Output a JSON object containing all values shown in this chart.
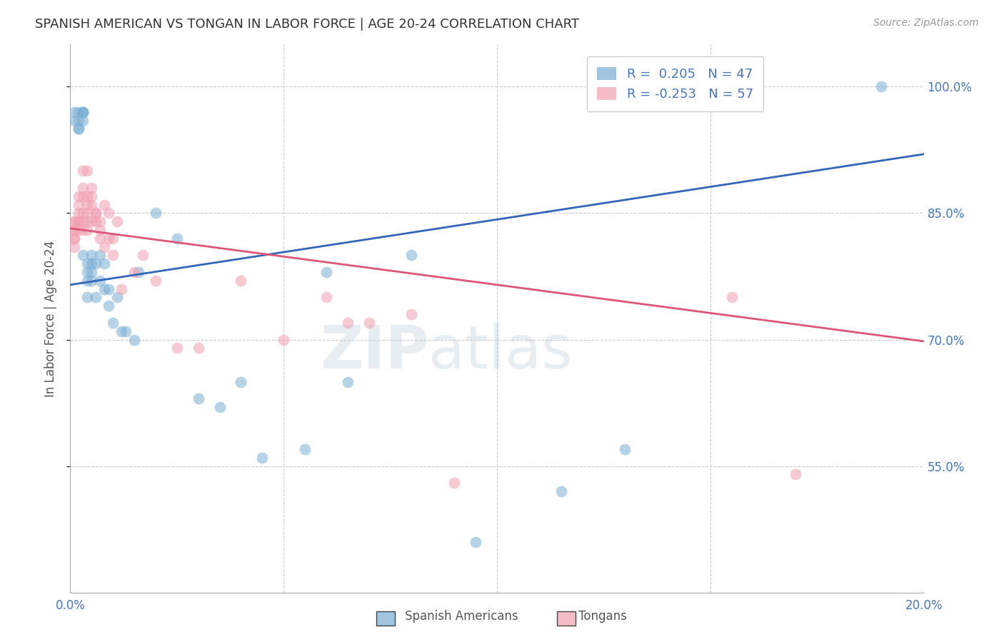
{
  "title": "SPANISH AMERICAN VS TONGAN IN LABOR FORCE | AGE 20-24 CORRELATION CHART",
  "source": "Source: ZipAtlas.com",
  "ylabel": "In Labor Force | Age 20-24",
  "xlim": [
    0.0,
    0.2
  ],
  "ylim": [
    0.4,
    1.05
  ],
  "yticks": [
    0.55,
    0.7,
    0.85,
    1.0
  ],
  "grid_color": "#cccccc",
  "background_color": "#ffffff",
  "blue_color": "#7aadd4",
  "pink_color": "#f0a0b0",
  "blue_line_color": "#3366bb",
  "pink_line_color": "#dd5577",
  "title_color": "#333333",
  "axis_label_color": "#555555",
  "tick_color": "#4477bb",
  "legend_R_blue": "0.205",
  "legend_N_blue": "47",
  "legend_R_pink": "-0.253",
  "legend_N_pink": "57",
  "blue_x": [
    0.001,
    0.001,
    0.002,
    0.002,
    0.002,
    0.002,
    0.003,
    0.003,
    0.003,
    0.003,
    0.003,
    0.004,
    0.004,
    0.004,
    0.004,
    0.005,
    0.005,
    0.005,
    0.005,
    0.006,
    0.006,
    0.007,
    0.007,
    0.008,
    0.008,
    0.009,
    0.009,
    0.01,
    0.011,
    0.012,
    0.013,
    0.015,
    0.016,
    0.02,
    0.025,
    0.03,
    0.035,
    0.04,
    0.055,
    0.065,
    0.08,
    0.095,
    0.115,
    0.13,
    0.19,
    0.06,
    0.045
  ],
  "blue_y": [
    0.97,
    0.96,
    0.96,
    0.95,
    0.95,
    0.97,
    0.97,
    0.97,
    0.96,
    0.97,
    0.8,
    0.78,
    0.77,
    0.79,
    0.75,
    0.8,
    0.79,
    0.78,
    0.77,
    0.79,
    0.75,
    0.8,
    0.77,
    0.79,
    0.76,
    0.76,
    0.74,
    0.72,
    0.75,
    0.71,
    0.71,
    0.7,
    0.78,
    0.85,
    0.82,
    0.63,
    0.62,
    0.65,
    0.57,
    0.65,
    0.8,
    0.46,
    0.52,
    0.57,
    1.0,
    0.78,
    0.56
  ],
  "pink_x": [
    0.001,
    0.001,
    0.001,
    0.001,
    0.001,
    0.001,
    0.001,
    0.002,
    0.002,
    0.002,
    0.002,
    0.002,
    0.002,
    0.003,
    0.003,
    0.003,
    0.003,
    0.003,
    0.003,
    0.004,
    0.004,
    0.004,
    0.004,
    0.004,
    0.004,
    0.005,
    0.005,
    0.005,
    0.005,
    0.006,
    0.006,
    0.006,
    0.007,
    0.007,
    0.007,
    0.008,
    0.008,
    0.009,
    0.009,
    0.01,
    0.01,
    0.011,
    0.012,
    0.015,
    0.017,
    0.02,
    0.025,
    0.03,
    0.04,
    0.05,
    0.06,
    0.065,
    0.07,
    0.08,
    0.09,
    0.155,
    0.17
  ],
  "pink_y": [
    0.84,
    0.83,
    0.83,
    0.82,
    0.82,
    0.81,
    0.84,
    0.87,
    0.86,
    0.85,
    0.84,
    0.84,
    0.83,
    0.9,
    0.88,
    0.87,
    0.85,
    0.84,
    0.83,
    0.9,
    0.87,
    0.86,
    0.85,
    0.84,
    0.83,
    0.88,
    0.87,
    0.86,
    0.84,
    0.85,
    0.85,
    0.84,
    0.84,
    0.83,
    0.82,
    0.86,
    0.81,
    0.85,
    0.82,
    0.82,
    0.8,
    0.84,
    0.76,
    0.78,
    0.8,
    0.77,
    0.69,
    0.69,
    0.77,
    0.7,
    0.75,
    0.72,
    0.72,
    0.73,
    0.53,
    0.75,
    0.54
  ],
  "watermark_color": "#aec6d8",
  "watermark_alpha": 0.3
}
